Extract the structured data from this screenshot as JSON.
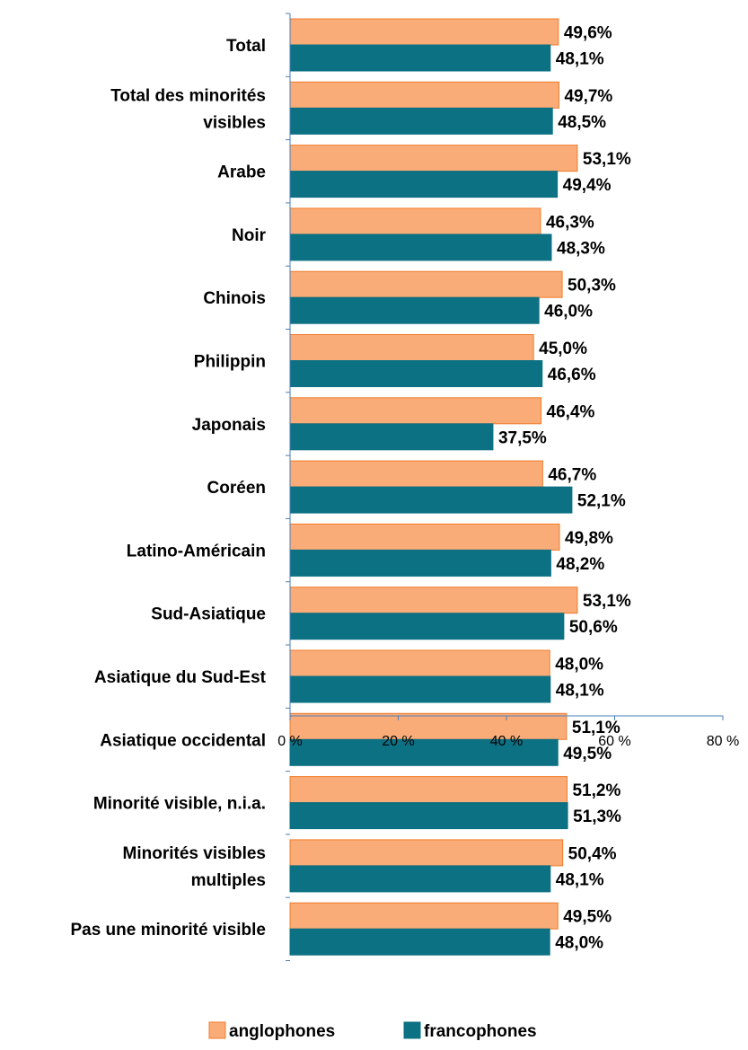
{
  "chart_data": {
    "type": "bar",
    "orientation": "horizontal",
    "categories": [
      "Total",
      "Total des minorités visibles",
      "Arabe",
      "Noir",
      "Chinois",
      "Philippin",
      "Japonais",
      "Coréen",
      "Latino-Américain",
      "Sud-Asiatique",
      "Asiatique du Sud-Est",
      "Asiatique occidental",
      "Minorité visible, n.i.a.",
      "Minorités visibles multiples",
      "Pas une minorité visible"
    ],
    "series": [
      {
        "name": "anglophones",
        "color": "#F9AC78",
        "border": "#F07B2A",
        "values": [
          49.6,
          49.7,
          53.1,
          46.3,
          50.3,
          45.0,
          46.4,
          46.7,
          49.8,
          53.1,
          48.0,
          51.1,
          51.2,
          50.4,
          49.5
        ],
        "labels": [
          "49,6%",
          "49,7%",
          "53,1%",
          "46,3%",
          "50,3%",
          "45,0%",
          "46,4%",
          "46,7%",
          "49,8%",
          "53,1%",
          "48,0%",
          "51,1%",
          "51,2%",
          "50,4%",
          "49,5%"
        ]
      },
      {
        "name": "francophones",
        "color": "#0D7184",
        "border": "#0D7184",
        "values": [
          48.1,
          48.5,
          49.4,
          48.3,
          46.0,
          46.6,
          37.5,
          52.1,
          48.2,
          50.6,
          48.1,
          49.5,
          51.3,
          48.1,
          48.0
        ],
        "labels": [
          "48,1%",
          "48,5%",
          "49,4%",
          "48,3%",
          "46,0%",
          "46,6%",
          "37,5%",
          "52,1%",
          "48,2%",
          "50,6%",
          "48,1%",
          "49,5%",
          "51,3%",
          "48,1%",
          "48,0%"
        ]
      }
    ],
    "xlim": [
      0,
      80
    ],
    "x_ticks": [
      0,
      20,
      40,
      60,
      80
    ],
    "x_tick_labels": [
      "0 %",
      "20 %",
      "40 %",
      "60 %",
      "80 %"
    ],
    "grid": false,
    "legend_position": "bottom",
    "axis_color": "#4A7EBB"
  }
}
